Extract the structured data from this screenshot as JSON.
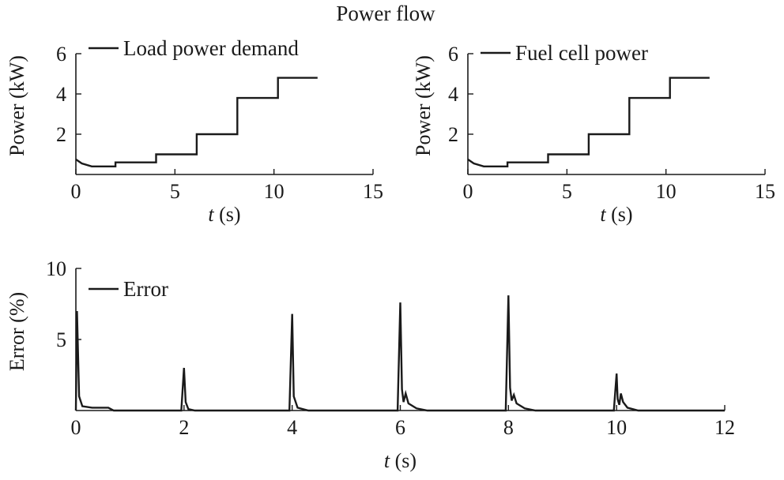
{
  "figure_title": "Power flow",
  "chart_data": [
    {
      "type": "line",
      "title": "",
      "xlabel_italic": "t",
      "xlabel_unit": "(s)",
      "ylabel": "Power (kW)",
      "xlim": [
        0,
        15
      ],
      "ylim": [
        0,
        6
      ],
      "xticks": [
        0,
        5,
        10,
        15
      ],
      "yticks": [
        2,
        4,
        6
      ],
      "legend": "top-left",
      "series": [
        {
          "name": "Load power demand",
          "x": [
            0,
            0.3,
            0.8,
            2.0,
            2.0,
            4.05,
            4.05,
            6.1,
            6.1,
            8.15,
            8.15,
            10.2,
            10.2,
            12.2
          ],
          "y": [
            0.75,
            0.55,
            0.4,
            0.4,
            0.6,
            0.6,
            1.0,
            1.0,
            2.0,
            2.0,
            3.8,
            3.8,
            4.8,
            4.8
          ]
        }
      ]
    },
    {
      "type": "line",
      "title": "",
      "xlabel_italic": "t",
      "xlabel_unit": "(s)",
      "ylabel": "Power (kW)",
      "xlim": [
        0,
        15
      ],
      "ylim": [
        0,
        6
      ],
      "xticks": [
        0,
        5,
        10,
        15
      ],
      "yticks": [
        2,
        4,
        6
      ],
      "legend": "top-left",
      "series": [
        {
          "name": "Fuel cell power",
          "x": [
            0,
            0.3,
            0.8,
            2.0,
            2.0,
            4.05,
            4.05,
            6.1,
            6.1,
            8.15,
            8.15,
            10.2,
            10.2,
            12.2
          ],
          "y": [
            0.75,
            0.55,
            0.4,
            0.4,
            0.6,
            0.6,
            1.0,
            1.0,
            2.0,
            2.0,
            3.8,
            3.8,
            4.8,
            4.8
          ]
        }
      ]
    },
    {
      "type": "line",
      "title": "",
      "xlabel_italic": "t",
      "xlabel_unit": "(s)",
      "ylabel": "Error (%)",
      "xlim": [
        0,
        12
      ],
      "ylim": [
        0,
        10
      ],
      "xticks": [
        0,
        2,
        4,
        6,
        8,
        10,
        12
      ],
      "yticks": [
        5,
        10
      ],
      "legend": "top-left",
      "series": [
        {
          "name": "Error",
          "x": [
            0,
            0.02,
            0.06,
            0.12,
            0.3,
            0.6,
            0.7,
            1.95,
            2.0,
            2.03,
            2.08,
            2.2,
            3.95,
            4.0,
            4.03,
            4.1,
            4.3,
            5.95,
            6.0,
            6.03,
            6.06,
            6.1,
            6.15,
            6.3,
            6.5,
            7.95,
            8.0,
            8.03,
            8.06,
            8.1,
            8.15,
            8.3,
            8.5,
            9.95,
            10.0,
            10.02,
            10.05,
            10.08,
            10.12,
            10.2,
            10.4,
            12.0
          ],
          "y": [
            0,
            7.0,
            1.0,
            0.3,
            0.2,
            0.2,
            0,
            0,
            3.0,
            0.6,
            0.1,
            0,
            0,
            6.8,
            1.0,
            0.2,
            0,
            0,
            7.6,
            1.5,
            0.6,
            1.2,
            0.5,
            0.15,
            0,
            0,
            8.1,
            1.6,
            0.7,
            1.1,
            0.5,
            0.15,
            0,
            0,
            2.6,
            0.8,
            0.4,
            1.2,
            0.6,
            0.2,
            0,
            0
          ]
        }
      ]
    }
  ]
}
